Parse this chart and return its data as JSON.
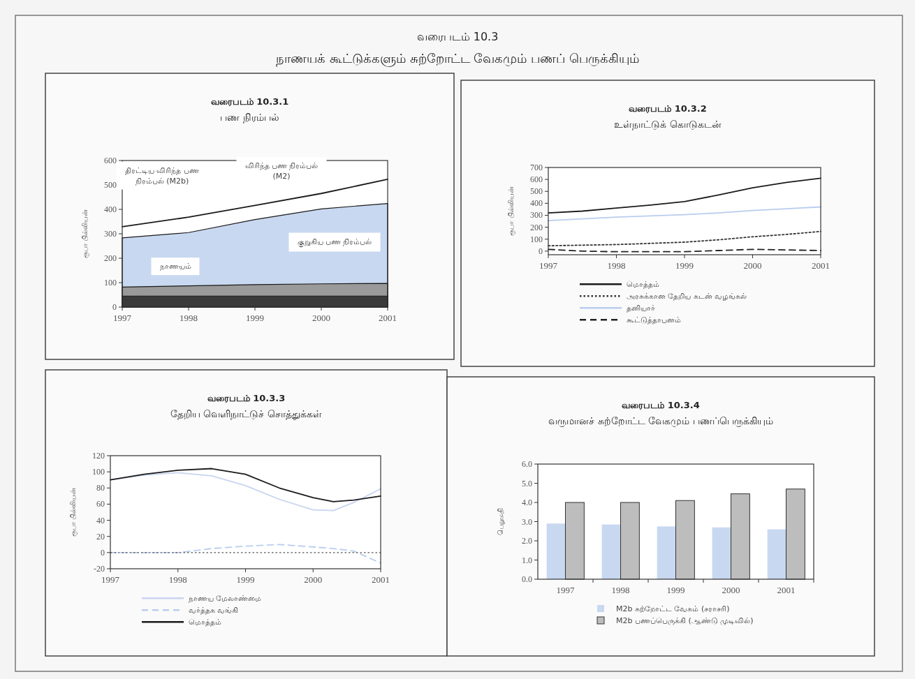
{
  "chart_data": [
    {
      "type": "other",
      "title": "வரைபடம் 10.3",
      "subtitle": "நாணயக் கூட்டுக்களும் சுற்றோட்ட வேகமும் பணப் பெருக்கியும்"
    },
    {
      "type": "area",
      "title": "வரைபடம் 10.3.1",
      "subtitle": "பண நிரம்பல்",
      "ylabel": "ரூபா பில்லியன்",
      "x": [
        1997,
        1998,
        1999,
        2000,
        2001
      ],
      "xlim": [
        1997,
        2001
      ],
      "xticks": [
        1997,
        1998,
        1999,
        2000,
        2001
      ],
      "ylim": [
        0,
        600
      ],
      "yticks": [
        0,
        100,
        200,
        300,
        400,
        500,
        600
      ],
      "series": [
        {
          "type": "area",
          "color": "#c8d8f0",
          "values": [
            283,
            305,
            358,
            402,
            424
          ]
        },
        {
          "type": "area",
          "color": "#9a9a9a",
          "values": [
            82,
            87,
            92,
            95,
            97
          ]
        },
        {
          "type": "area",
          "color": "#3a3a3a",
          "values": [
            45,
            45,
            45,
            45,
            45
          ]
        },
        {
          "type": "line",
          "color": "#1a1a1a",
          "values": [
            329,
            368,
            416,
            465,
            523
          ]
        }
      ],
      "annotations": [
        "திரட்டிய விரிந்த பண நிரம்பல் (M2b)",
        "விரிந்த பண நிரம்பல் (M2)",
        "குறுகிய பண நிரம்பல்",
        "நாணயம்"
      ]
    },
    {
      "type": "line",
      "title": "வரைபடம் 10.3.2",
      "subtitle": "உள்நாட்டுக் கொடுகடன்",
      "ylabel": "ரூபா பில்லியன்",
      "x": [
        1997,
        1997.5,
        1998,
        1998.5,
        1999,
        1999.5,
        2000,
        2000.5,
        2001
      ],
      "xlim": [
        1997,
        2001
      ],
      "xticks": [
        1997,
        1998,
        1999,
        2000,
        2001
      ],
      "ylim": [
        -30,
        700
      ],
      "yticks": [
        0,
        100,
        200,
        300,
        400,
        500,
        600,
        700
      ],
      "legend": "bottom",
      "series": [
        {
          "name": "மொத்தம்",
          "color": "#1a1a1a",
          "line_style": "solid",
          "values": [
            320,
            335,
            360,
            385,
            415,
            470,
            530,
            575,
            610
          ]
        },
        {
          "name": "அரசுக்கான தேறிய கடன் வழங்கல்",
          "color": "#333333",
          "line_style": "dotted",
          "values": [
            45,
            50,
            55,
            65,
            75,
            95,
            120,
            140,
            165
          ]
        },
        {
          "name": "தனியார்",
          "color": "#b9cdee",
          "line_style": "solid",
          "values": [
            255,
            270,
            285,
            295,
            305,
            320,
            340,
            355,
            370
          ]
        },
        {
          "name": "கூட்டுத்தாபனம்",
          "color": "#222222",
          "line_style": "dashed",
          "values": [
            15,
            0,
            -5,
            -5,
            -5,
            5,
            15,
            10,
            5
          ]
        }
      ]
    },
    {
      "type": "line",
      "title": "வரைபடம் 10.3.3",
      "subtitle": "தேறிய வெளிநாட்டுச் சொத்துக்கள்",
      "ylabel": "ரூபா பில்லியன்",
      "x": [
        1997,
        1997.5,
        1998,
        1998.5,
        1999,
        1999.5,
        2000,
        2000.3,
        2000.6,
        2001
      ],
      "xlim": [
        1997,
        2001
      ],
      "xticks": [
        1997,
        1998,
        1999,
        2000,
        2001
      ],
      "ylim": [
        -20,
        120
      ],
      "yticks": [
        -20,
        0,
        20,
        40,
        60,
        80,
        100,
        120
      ],
      "legend": "bottom",
      "series": [
        {
          "name": "நாணய மேலாண்மை",
          "color": "#c8d4f0",
          "line_style": "solid",
          "values": [
            90,
            96,
            99,
            95,
            83,
            66,
            53,
            52,
            62,
            79
          ]
        },
        {
          "name": "வர்த்தக வங்கி",
          "color": "#b9cdee",
          "line_style": "dashed",
          "values": [
            0,
            0,
            0,
            5,
            8,
            10,
            7,
            5,
            2,
            -13
          ]
        },
        {
          "name": "மொத்தம்",
          "color": "#1a1a1a",
          "line_style": "solid",
          "values": [
            90,
            97,
            102,
            104,
            97,
            80,
            68,
            63,
            65,
            70
          ]
        }
      ],
      "ref_lines": [
        {
          "axis": "y",
          "value": 0,
          "color": "#555555",
          "line_style": "dotted"
        }
      ]
    },
    {
      "type": "bar",
      "title": "வரைபடம் 10.3.4",
      "subtitle": "வருமானச் சுற்றோட்ட வேகமும் பணப்பெருக்கியும்",
      "ylabel": "பெறுமதி",
      "categories": [
        "1997",
        "1998",
        "1999",
        "2000",
        "2001"
      ],
      "ylim": [
        0,
        6
      ],
      "yticks": [
        {
          "value": 0,
          "label": "0.0"
        },
        {
          "value": 1,
          "label": "1.0"
        },
        {
          "value": 2,
          "label": "2.0"
        },
        {
          "value": 3,
          "label": "3.0"
        },
        {
          "value": 4,
          "label": "4.0"
        },
        {
          "value": 5,
          "label": "5.0"
        },
        {
          "value": 6,
          "label": "6.0"
        }
      ],
      "legend": "bottom",
      "series": [
        {
          "name": "M2b சுற்றோட்ட வேகம் (சராசரி)",
          "color": "#c8d8f0",
          "values": [
            2.9,
            2.85,
            2.75,
            2.7,
            2.6
          ]
        },
        {
          "name": "M2b பணப்பெருக்கி (ஆண்டு முடிவில்)",
          "color": "#bdbdbd",
          "values": [
            4.0,
            4.0,
            4.1,
            4.45,
            4.7
          ]
        }
      ]
    }
  ]
}
